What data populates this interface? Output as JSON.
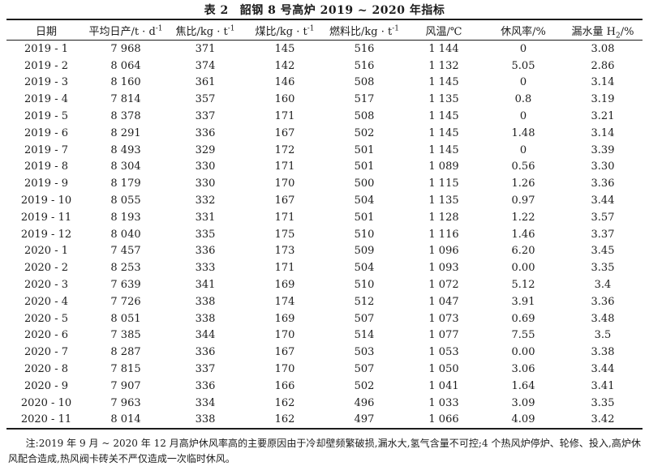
{
  "title": {
    "label": "表 2",
    "caption": "韶钢 8 号高炉 2019 ~ 2020 年指标"
  },
  "footnote": {
    "label": "注:",
    "text": "2019 年 9 月 ~ 2020 年 12 月高炉休风率高的主要原因由于冷却壁频繁破损,漏水大,氢气含量不可控;4 个热风炉停炉、轮修、投入,高炉休风配合造成,热风阀卡砖关不严仅造成一次临时休风。"
  },
  "chart_data": {
    "type": "table",
    "title": "表 2 韶钢 8 号高炉 2019 ~ 2020 年指标",
    "columns": [
      {
        "name": "date",
        "parts": [
          {
            "text": "日期"
          }
        ]
      },
      {
        "name": "avg-daily-output",
        "parts": [
          {
            "text": "平均日产/t · d"
          },
          {
            "text": "-1",
            "style": "sup"
          }
        ]
      },
      {
        "name": "coke-ratio",
        "parts": [
          {
            "text": "焦比/kg · t"
          },
          {
            "text": "-1",
            "style": "sup"
          }
        ]
      },
      {
        "name": "coal-ratio",
        "parts": [
          {
            "text": "煤比/kg · t"
          },
          {
            "text": "-1",
            "style": "sup"
          }
        ]
      },
      {
        "name": "fuel-ratio",
        "parts": [
          {
            "text": "燃料比/kg · t"
          },
          {
            "text": "-1",
            "style": "sup"
          }
        ]
      },
      {
        "name": "blast-temperature",
        "parts": [
          {
            "text": "风温/℃"
          }
        ]
      },
      {
        "name": "downtime-rate",
        "parts": [
          {
            "text": "休风率/%"
          }
        ]
      },
      {
        "name": "water-leakage-h2",
        "parts": [
          {
            "text": "漏水量 H"
          },
          {
            "text": "2",
            "style": "sub"
          },
          {
            "text": "/%"
          }
        ]
      }
    ],
    "rows": [
      [
        "2019 - 1",
        "7 968",
        "371",
        "145",
        "516",
        "1 144",
        "0",
        "3.08"
      ],
      [
        "2019 - 2",
        "8 064",
        "374",
        "142",
        "516",
        "1 132",
        "5.05",
        "2.86"
      ],
      [
        "2019 - 3",
        "8 160",
        "361",
        "146",
        "508",
        "1 145",
        "0",
        "3.14"
      ],
      [
        "2019 - 4",
        "7 814",
        "357",
        "160",
        "517",
        "1 135",
        "0.8",
        "3.19"
      ],
      [
        "2019 - 5",
        "8 378",
        "337",
        "171",
        "508",
        "1 145",
        "0",
        "3.21"
      ],
      [
        "2019 - 6",
        "8 291",
        "336",
        "167",
        "502",
        "1 145",
        "1.48",
        "3.14"
      ],
      [
        "2019 - 7",
        "8 493",
        "329",
        "172",
        "501",
        "1 145",
        "0",
        "3.39"
      ],
      [
        "2019 - 8",
        "8 304",
        "330",
        "171",
        "501",
        "1 089",
        "0.56",
        "3.30"
      ],
      [
        "2019 - 9",
        "8 179",
        "330",
        "170",
        "500",
        "1 115",
        "1.26",
        "3.36"
      ],
      [
        "2019 - 10",
        "8 055",
        "332",
        "167",
        "504",
        "1 135",
        "0.97",
        "3.44"
      ],
      [
        "2019 - 11",
        "8 193",
        "331",
        "171",
        "501",
        "1 128",
        "1.22",
        "3.57"
      ],
      [
        "2019 - 12",
        "8 040",
        "335",
        "175",
        "510",
        "1 116",
        "1.46",
        "3.37"
      ],
      [
        "2020 - 1",
        "7 457",
        "336",
        "173",
        "509",
        "1 096",
        "6.20",
        "3.45"
      ],
      [
        "2020 - 2",
        "8 253",
        "333",
        "171",
        "504",
        "1 093",
        "0.00",
        "3.35"
      ],
      [
        "2020 - 3",
        "7 639",
        "341",
        "169",
        "510",
        "1 072",
        "5.12",
        "3.4"
      ],
      [
        "2020 - 4",
        "7 726",
        "338",
        "174",
        "512",
        "1 047",
        "3.91",
        "3.36"
      ],
      [
        "2020 - 5",
        "8 051",
        "338",
        "169",
        "507",
        "1 073",
        "0.69",
        "3.48"
      ],
      [
        "2020 - 6",
        "7 385",
        "344",
        "170",
        "514",
        "1 077",
        "7.55",
        "3.5"
      ],
      [
        "2020 - 7",
        "8 287",
        "336",
        "167",
        "503",
        "1 053",
        "0.00",
        "3.38"
      ],
      [
        "2020 - 8",
        "7 815",
        "337",
        "170",
        "507",
        "1 050",
        "3.06",
        "3.44"
      ],
      [
        "2020 - 9",
        "7 907",
        "336",
        "166",
        "502",
        "1 041",
        "1.64",
        "3.41"
      ],
      [
        "2020 - 10",
        "7 963",
        "334",
        "162",
        "496",
        "1 033",
        "3.09",
        "3.35"
      ],
      [
        "2020 - 11",
        "8 014",
        "338",
        "162",
        "497",
        "1 066",
        "4.09",
        "3.42"
      ]
    ]
  }
}
